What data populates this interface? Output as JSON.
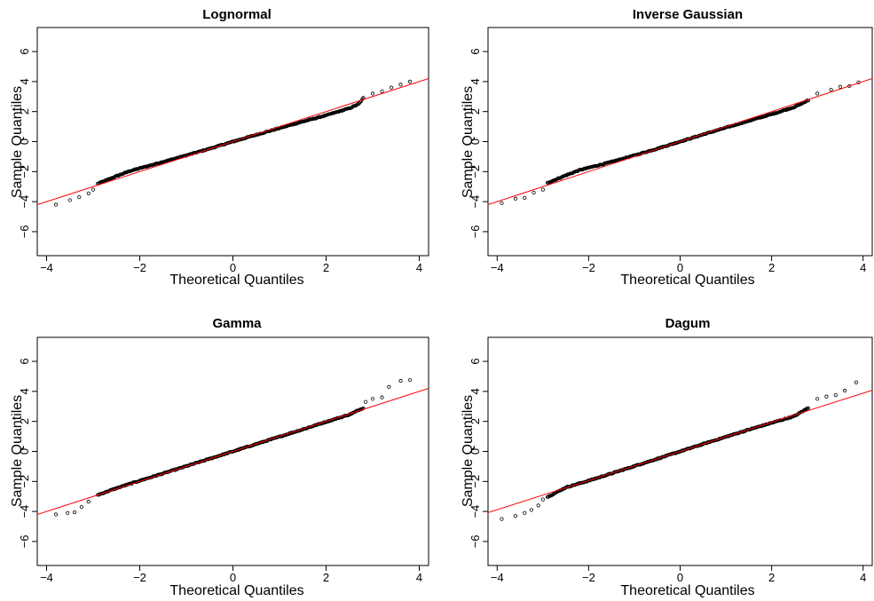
{
  "chart_data": [
    {
      "type": "scatter",
      "title": "Lognormal",
      "xlabel": "Theoretical Quantiles",
      "ylabel": "Sample Quantiles",
      "xlim": [
        -4.2,
        4.2
      ],
      "ylim": [
        -7.6,
        7.6
      ],
      "xticks": [
        -4,
        -2,
        0,
        2,
        4
      ],
      "yticks": [
        -6,
        -4,
        -2,
        0,
        2,
        4,
        6
      ],
      "tick_labels_x": [
        "−4",
        "−2",
        "0",
        "2",
        "4"
      ],
      "tick_labels_y": [
        "−6",
        "−4",
        "−2",
        "0",
        "2",
        "4",
        "6"
      ],
      "reference_line": {
        "slope": 1.0,
        "intercept": 0.0,
        "color": "#ff0000"
      },
      "qq_shape": [
        [
          -3.8,
          -4.2
        ],
        [
          -3.5,
          -3.9
        ],
        [
          -3.3,
          -3.7
        ],
        [
          -3.1,
          -3.45
        ],
        [
          -3.0,
          -3.2
        ],
        [
          -2.9,
          -2.8
        ],
        [
          -2.5,
          -2.3
        ],
        [
          -2.2,
          -1.95
        ],
        [
          -1.5,
          -1.35
        ],
        [
          -1.0,
          -0.92
        ],
        [
          -0.5,
          -0.47
        ],
        [
          0.0,
          0.0
        ],
        [
          0.5,
          0.45
        ],
        [
          1.0,
          0.9
        ],
        [
          1.5,
          1.33
        ],
        [
          2.0,
          1.75
        ],
        [
          2.5,
          2.22
        ],
        [
          2.7,
          2.5
        ],
        [
          2.8,
          2.9
        ],
        [
          3.0,
          3.2
        ],
        [
          3.2,
          3.35
        ],
        [
          3.4,
          3.6
        ],
        [
          3.6,
          3.8
        ],
        [
          3.8,
          4.0
        ]
      ],
      "point_color": "#000000"
    },
    {
      "type": "scatter",
      "title": "Inverse Gaussian",
      "xlabel": "Theoretical Quantiles",
      "ylabel": "Sample Quantiles",
      "xlim": [
        -4.2,
        4.2
      ],
      "ylim": [
        -7.6,
        7.6
      ],
      "xticks": [
        -4,
        -2,
        0,
        2,
        4
      ],
      "yticks": [
        -6,
        -4,
        -2,
        0,
        2,
        4,
        6
      ],
      "tick_labels_x": [
        "−4",
        "−2",
        "0",
        "2",
        "4"
      ],
      "tick_labels_y": [
        "−6",
        "−4",
        "−2",
        "0",
        "2",
        "4",
        "6"
      ],
      "reference_line": {
        "slope": 1.0,
        "intercept": 0.0,
        "color": "#ff0000"
      },
      "qq_shape": [
        [
          -3.9,
          -4.1
        ],
        [
          -3.6,
          -3.8
        ],
        [
          -3.4,
          -3.75
        ],
        [
          -3.2,
          -3.4
        ],
        [
          -3.0,
          -3.2
        ],
        [
          -2.9,
          -2.75
        ],
        [
          -2.5,
          -2.25
        ],
        [
          -2.2,
          -1.9
        ],
        [
          -1.5,
          -1.35
        ],
        [
          -1.0,
          -0.92
        ],
        [
          -0.5,
          -0.47
        ],
        [
          0.0,
          0.0
        ],
        [
          0.5,
          0.47
        ],
        [
          1.0,
          0.93
        ],
        [
          1.5,
          1.38
        ],
        [
          2.0,
          1.82
        ],
        [
          2.5,
          2.3
        ],
        [
          2.8,
          2.75
        ],
        [
          3.0,
          3.2
        ],
        [
          3.3,
          3.45
        ],
        [
          3.5,
          3.65
        ],
        [
          3.7,
          3.7
        ],
        [
          3.9,
          3.95
        ]
      ],
      "point_color": "#000000"
    },
    {
      "type": "scatter",
      "title": "Gamma",
      "xlabel": "Theoretical Quantiles",
      "ylabel": "Sample Quantiles",
      "xlim": [
        -4.2,
        4.2
      ],
      "ylim": [
        -7.6,
        7.6
      ],
      "xticks": [
        -4,
        -2,
        0,
        2,
        4
      ],
      "yticks": [
        -6,
        -4,
        -2,
        0,
        2,
        4,
        6
      ],
      "tick_labels_x": [
        "−4",
        "−2",
        "0",
        "2",
        "4"
      ],
      "tick_labels_y": [
        "−6",
        "−4",
        "−2",
        "0",
        "2",
        "4",
        "6"
      ],
      "reference_line": {
        "slope": 1.0,
        "intercept": 0.0,
        "color": "#ff0000"
      },
      "qq_shape": [
        [
          -3.8,
          -4.2
        ],
        [
          -3.55,
          -4.1
        ],
        [
          -3.4,
          -4.05
        ],
        [
          -3.25,
          -3.7
        ],
        [
          -3.1,
          -3.35
        ],
        [
          -2.9,
          -2.9
        ],
        [
          -2.5,
          -2.45
        ],
        [
          -2.0,
          -1.95
        ],
        [
          -1.5,
          -1.47
        ],
        [
          -1.0,
          -0.98
        ],
        [
          -0.5,
          -0.49
        ],
        [
          0.0,
          0.0
        ],
        [
          0.5,
          0.49
        ],
        [
          1.0,
          0.98
        ],
        [
          1.5,
          1.47
        ],
        [
          2.0,
          1.97
        ],
        [
          2.5,
          2.45
        ],
        [
          2.8,
          2.9
        ],
        [
          2.85,
          3.3
        ],
        [
          3.0,
          3.5
        ],
        [
          3.2,
          3.6
        ],
        [
          3.35,
          4.3
        ],
        [
          3.6,
          4.7
        ],
        [
          3.8,
          4.75
        ]
      ],
      "point_color": "#000000"
    },
    {
      "type": "scatter",
      "title": "Dagum",
      "xlabel": "Theoretical Quantiles",
      "ylabel": "Sample Quantiles",
      "xlim": [
        -4.2,
        4.2
      ],
      "ylim": [
        -7.6,
        7.6
      ],
      "xticks": [
        -4,
        -2,
        0,
        2,
        4
      ],
      "yticks": [
        -6,
        -4,
        -2,
        0,
        2,
        4,
        6
      ],
      "tick_labels_x": [
        "−4",
        "−2",
        "0",
        "2",
        "4"
      ],
      "tick_labels_y": [
        "−6",
        "−4",
        "−2",
        "0",
        "2",
        "4",
        "6"
      ],
      "reference_line": {
        "slope": 0.97,
        "intercept": 0.0,
        "color": "#ff0000"
      },
      "qq_shape": [
        [
          -3.9,
          -4.5
        ],
        [
          -3.6,
          -4.3
        ],
        [
          -3.4,
          -4.1
        ],
        [
          -3.25,
          -3.9
        ],
        [
          -3.1,
          -3.6
        ],
        [
          -3.0,
          -3.2
        ],
        [
          -2.5,
          -2.4
        ],
        [
          -2.0,
          -1.95
        ],
        [
          -1.5,
          -1.47
        ],
        [
          -1.0,
          -0.98
        ],
        [
          -0.5,
          -0.49
        ],
        [
          0.0,
          0.0
        ],
        [
          0.5,
          0.49
        ],
        [
          1.0,
          0.97
        ],
        [
          1.5,
          1.45
        ],
        [
          2.0,
          1.9
        ],
        [
          2.5,
          2.35
        ],
        [
          2.8,
          2.9
        ],
        [
          3.0,
          3.5
        ],
        [
          3.2,
          3.65
        ],
        [
          3.4,
          3.75
        ],
        [
          3.6,
          4.05
        ],
        [
          3.85,
          4.6
        ]
      ],
      "point_color": "#000000"
    }
  ]
}
